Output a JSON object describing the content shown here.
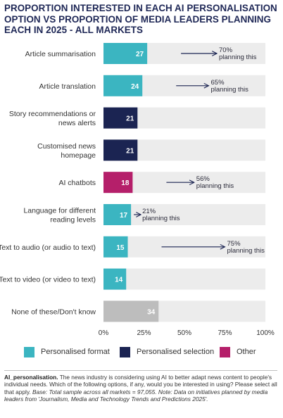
{
  "title": "PROPORTION INTERESTED IN EACH AI PERSONALISATION OPTION VS PROPORTION OF MEDIA LEADERS PLANNING EACH IN 2025 - ALL MARKETS",
  "colors": {
    "personalised_format": "#3bb5c1",
    "personalised_selection": "#1b2452",
    "other": "#b51f6a",
    "none": "#bdbdbd",
    "track": "#ececec",
    "arrow": "#1b2452"
  },
  "legend": [
    {
      "label": "Personalised format",
      "color": "#3bb5c1"
    },
    {
      "label": "Personalised selection",
      "color": "#1b2452"
    },
    {
      "label": "Other",
      "color": "#b51f6a"
    }
  ],
  "chart_data": {
    "type": "bar",
    "orientation": "horizontal",
    "title": "PROPORTION INTERESTED IN EACH AI PERSONALISATION OPTION VS PROPORTION OF MEDIA LEADERS PLANNING EACH IN 2025 - ALL MARKETS",
    "xlim": [
      0,
      100
    ],
    "x_ticks": [
      "0%",
      "25%",
      "50%",
      "75%",
      "100%"
    ],
    "categories": [
      {
        "label": [
          "Article summarisation"
        ],
        "value": 27,
        "group": "personalised_format",
        "planning": "70%",
        "planning_label": "planning this"
      },
      {
        "label": [
          "Article translation"
        ],
        "value": 24,
        "group": "personalised_format",
        "planning": "65%",
        "planning_label": "planning this"
      },
      {
        "label": [
          "Story recommendations or",
          "news alerts"
        ],
        "value": 21,
        "group": "personalised_selection"
      },
      {
        "label": [
          "Customised news",
          "homepage"
        ],
        "value": 21,
        "group": "personalised_selection"
      },
      {
        "label": [
          "AI chatbots"
        ],
        "value": 18,
        "group": "other",
        "planning": "56%",
        "planning_label": "planning this"
      },
      {
        "label": [
          "Language for different",
          "reading levels"
        ],
        "value": 17,
        "group": "personalised_format",
        "planning": "21%",
        "planning_label": "planning this"
      },
      {
        "label": [
          "Text to audio (or audio to text)"
        ],
        "value": 15,
        "group": "personalised_format",
        "planning": "75%",
        "planning_label": "planning this"
      },
      {
        "label": [
          "Text to video (or video to text)"
        ],
        "value": 14,
        "group": "personalised_format"
      },
      {
        "label": [
          "None of these/Don't know"
        ],
        "value": 34,
        "group": "none"
      }
    ]
  },
  "note": {
    "lead": "AI_personalisation.",
    "body": " The news industry is considering using AI to better adapt news content to people's individual needs. Which of the following options, if any, would you be interested in using? Please select all that apply. ",
    "base": "Base: Total sample across all markets = 97,055. Note: Data on initiatives planned by media leaders from 'Journalism, Media and Technology Trends and Predictions 2025'."
  }
}
